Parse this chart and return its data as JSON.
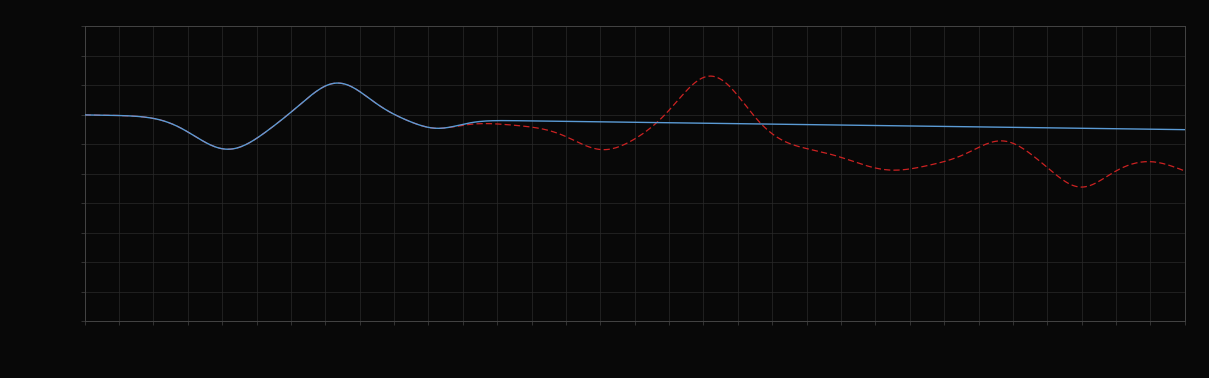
{
  "background_color": "#080808",
  "plot_bg_color": "#080808",
  "grid_color": "#2a2a2a",
  "line1_color": "#5b9bd5",
  "line2_color": "#cc2222",
  "figsize": [
    12.09,
    3.78
  ],
  "dpi": 100,
  "xlim": [
    0,
    1
  ],
  "ylim": [
    0,
    10
  ],
  "n_points": 500,
  "grid_nx": 32,
  "grid_ny": 10,
  "spine_color": "#444444"
}
